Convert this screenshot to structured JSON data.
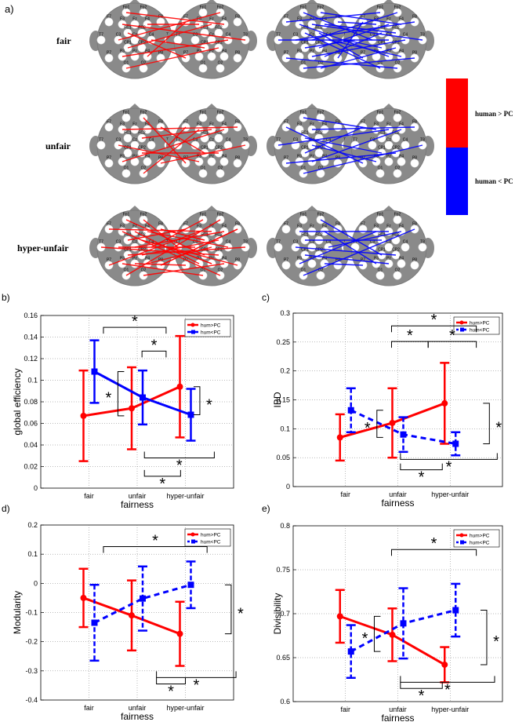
{
  "panel_a": {
    "label": "a)",
    "rows": [
      "fair",
      "unfair",
      "hyper-unfair"
    ],
    "colorbar": {
      "top_label": "human > PC",
      "bottom_label": "human < PC",
      "top_color": "#ff0000",
      "bottom_color": "#0000ff"
    },
    "electrodes": [
      {
        "n": "Fp1"
      },
      {
        "n": "Fp2"
      },
      {
        "n": "F7"
      },
      {
        "n": "F3"
      },
      {
        "n": "Fz"
      },
      {
        "n": "F4"
      },
      {
        "n": "F8"
      },
      {
        "n": "FC1"
      },
      {
        "n": "FC2"
      },
      {
        "n": "T7"
      },
      {
        "n": "C3"
      },
      {
        "n": "Cz"
      },
      {
        "n": "C4"
      },
      {
        "n": "T8"
      },
      {
        "n": "CP1"
      },
      {
        "n": "CP2"
      },
      {
        "n": "P7"
      },
      {
        "n": "P3"
      },
      {
        "n": "Pz"
      },
      {
        "n": "P4"
      },
      {
        "n": "P8"
      },
      {
        "n": "O1"
      },
      {
        "n": "O2"
      }
    ]
  },
  "chart_data": [
    {
      "panel": "b)",
      "type": "line",
      "categories": [
        "fair",
        "unfair",
        "hyper-unfair"
      ],
      "xlabel": "fairness",
      "ylabel": "global efficiency",
      "ylim": [
        0,
        0.16
      ],
      "yticks": [
        0,
        0.02,
        0.04,
        0.06,
        0.08,
        0.1,
        0.12,
        0.14,
        0.16
      ],
      "ytick_labels": [
        "0",
        "0.02",
        "0.04",
        "0.06",
        "0.08",
        "0.1",
        "0.12",
        "0.14",
        "0.16"
      ],
      "legend": [
        "hum>PC",
        "hum<PC"
      ],
      "legend_position": "top-right",
      "series": [
        {
          "name": "hum>PC",
          "color": "#ff0000",
          "style": "solid",
          "values": [
            0.067,
            0.074,
            0.094
          ],
          "err": [
            0.042,
            0.038,
            0.047
          ]
        },
        {
          "name": "hum<PC",
          "color": "#0000ff",
          "style": "solid",
          "values": [
            0.108,
            0.084,
            0.068
          ],
          "err": [
            0.029,
            0.025,
            0.024
          ]
        }
      ],
      "brackets": [
        {
          "side": "top",
          "from": 0.3,
          "to": 1.6,
          "y": 0.149,
          "tip": -1
        },
        {
          "side": "top",
          "from": 1.1,
          "to": 1.6,
          "y": 0.127,
          "tip": -1
        },
        {
          "side": "left",
          "x": 0.6,
          "from": 0.067,
          "to": 0.108
        },
        {
          "side": "right",
          "x": 2.3,
          "from": 0.094,
          "to": 0.068
        },
        {
          "side": "bottom",
          "from": 1.15,
          "to": 1.9,
          "y": 0.011,
          "tip": 1
        },
        {
          "side": "bottom",
          "from": 1.15,
          "to": 2.6,
          "y": 0.028,
          "tip": 1
        }
      ],
      "star": "*"
    },
    {
      "panel": "c)",
      "type": "line",
      "categories": [
        "fair",
        "unfair",
        "hyper-unfair"
      ],
      "xlabel": "fairness",
      "ylabel": "IBD",
      "ylim": [
        0,
        0.3
      ],
      "yticks": [
        0,
        0.05,
        0.1,
        0.15,
        0.2,
        0.25,
        0.3
      ],
      "ytick_labels": [
        "0",
        "0.05",
        "0.1",
        "0.15",
        "0.2",
        "0.25",
        "0.3"
      ],
      "legend": [
        "hum>PC",
        "hum<PC"
      ],
      "legend_position": "top-right",
      "series": [
        {
          "name": "hum>PC",
          "color": "#ff0000",
          "style": "solid",
          "values": [
            0.085,
            0.11,
            0.144
          ],
          "err": [
            0.04,
            0.06,
            0.07
          ]
        },
        {
          "name": "hum<PC",
          "color": "#0000ff",
          "style": "dashed",
          "values": [
            0.132,
            0.09,
            0.074
          ],
          "err": [
            0.038,
            0.03,
            0.02
          ]
        }
      ],
      "brackets": [
        {
          "side": "top",
          "from": 0.88,
          "to": 2.5,
          "y": 0.278,
          "tip": -1
        },
        {
          "side": "top",
          "from": 0.88,
          "to": 1.58,
          "y": 0.251,
          "tip": -1
        },
        {
          "side": "top",
          "from": 1.58,
          "to": 2.5,
          "y": 0.251,
          "tip": -1
        },
        {
          "side": "left",
          "x": 0.6,
          "from": 0.085,
          "to": 0.132
        },
        {
          "side": "right",
          "x": 2.75,
          "from": 0.144,
          "to": 0.074
        },
        {
          "side": "bottom",
          "from": 1.05,
          "to": 1.85,
          "y": 0.029,
          "tip": 1
        },
        {
          "side": "bottom",
          "from": 1.05,
          "to": 2.9,
          "y": 0.047,
          "tip": 1
        }
      ],
      "star": "*"
    },
    {
      "panel": "d)",
      "type": "line",
      "categories": [
        "fair",
        "unfair",
        "hyper-unfair"
      ],
      "xlabel": "fairness",
      "ylabel": "Modularity",
      "ylim": [
        -0.4,
        0.2
      ],
      "yticks": [
        -0.4,
        -0.3,
        -0.2,
        -0.1,
        0,
        0.1,
        0.2
      ],
      "ytick_labels": [
        "-0.4",
        "-0.3",
        "-0.2",
        "-0.1",
        "0",
        "0.1",
        "0.2"
      ],
      "legend": [
        "hum>PC",
        "hum<PC"
      ],
      "legend_position": "top-right",
      "series": [
        {
          "name": "hum>PC",
          "color": "#ff0000",
          "style": "solid",
          "values": [
            -0.05,
            -0.11,
            -0.173
          ],
          "err": [
            0.1,
            0.12,
            0.11
          ]
        },
        {
          "name": "hum<PC",
          "color": "#0000ff",
          "style": "dashed",
          "values": [
            -0.135,
            -0.052,
            -0.005
          ],
          "err": [
            0.13,
            0.11,
            0.08
          ]
        }
      ],
      "brackets": [
        {
          "side": "top",
          "from": 0.3,
          "to": 2.45,
          "y": 0.126,
          "tip": -1
        },
        {
          "side": "right",
          "x": 2.95,
          "from": -0.005,
          "to": -0.173
        },
        {
          "side": "bottom",
          "from": 1.4,
          "to": 2.0,
          "y": -0.345,
          "tip": 1
        },
        {
          "side": "bottom",
          "from": 1.4,
          "to": 3.05,
          "y": -0.323,
          "tip": 1
        }
      ],
      "star": "*"
    },
    {
      "panel": "e)",
      "type": "line",
      "categories": [
        "fair",
        "unfair",
        "hyper-unfair"
      ],
      "xlabel": "fairness",
      "ylabel": "Divisibility",
      "ylim": [
        0.6,
        0.8
      ],
      "yticks": [
        0.6,
        0.65,
        0.7,
        0.75,
        0.8
      ],
      "ytick_labels": [
        "0.6",
        "0.65",
        "0.7",
        "0.75",
        "0.8"
      ],
      "legend": [
        "hum>PC",
        "hum<PC"
      ],
      "legend_position": "top-right",
      "series": [
        {
          "name": "hum>PC",
          "color": "#ff0000",
          "style": "solid",
          "values": [
            0.697,
            0.676,
            0.642
          ],
          "err": [
            0.03,
            0.03,
            0.02
          ]
        },
        {
          "name": "hum<PC",
          "color": "#0000ff",
          "style": "dashed",
          "values": [
            0.657,
            0.689,
            0.704
          ],
          "err": [
            0.03,
            0.04,
            0.03
          ]
        }
      ],
      "brackets": [
        {
          "side": "top",
          "from": 0.88,
          "to": 2.5,
          "y": 0.773,
          "tip": -1
        },
        {
          "side": "left",
          "x": 0.55,
          "from": 0.697,
          "to": 0.657
        },
        {
          "side": "right",
          "x": 2.7,
          "from": 0.704,
          "to": 0.642
        },
        {
          "side": "bottom",
          "from": 1.05,
          "to": 1.85,
          "y": 0.615,
          "tip": 1
        },
        {
          "side": "bottom",
          "from": 1.05,
          "to": 2.85,
          "y": 0.622,
          "tip": 1
        }
      ],
      "star": "*"
    }
  ]
}
